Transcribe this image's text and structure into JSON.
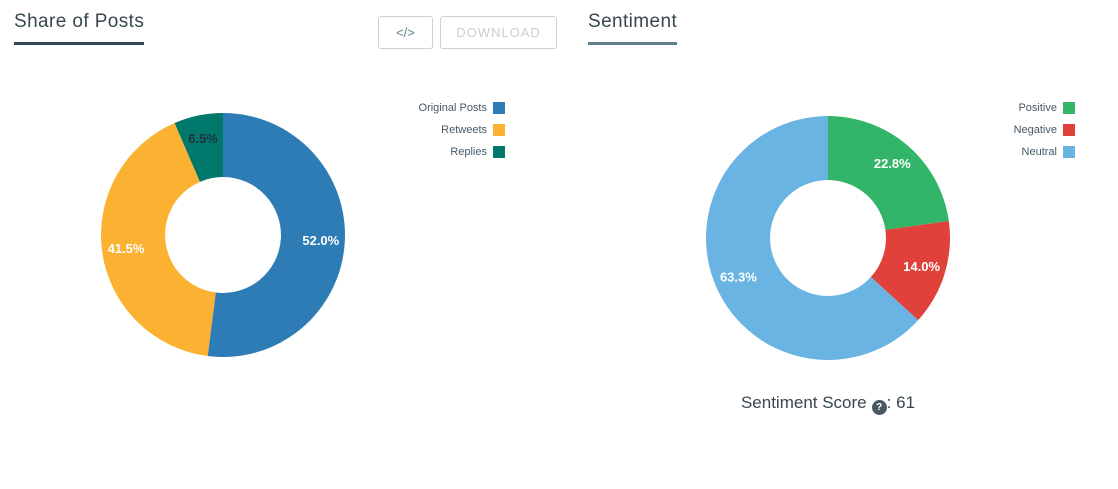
{
  "headers": {
    "share_of_posts": "Share of Posts",
    "sentiment": "Sentiment"
  },
  "toolbar": {
    "embed_label": "</>",
    "download_label": "DOWNLOAD"
  },
  "sentiment_score": {
    "label": "Sentiment Score",
    "help": "?",
    "separator": ":",
    "value": "61"
  },
  "colors": {
    "heading_text": "#37474f",
    "legend_text": "#455a64"
  },
  "chart_data": [
    {
      "type": "pie",
      "subtype": "donut",
      "title": "Share of Posts",
      "labels": [
        "Original Posts",
        "Retweets",
        "Replies"
      ],
      "values": [
        52.0,
        41.5,
        6.5
      ],
      "slice_labels": [
        "52.0%",
        "41.5%",
        "6.5%"
      ],
      "colors": [
        "#2e7cb5",
        "#fbb232",
        "#00786b"
      ],
      "label_colors": [
        "#ffffff",
        "#ffffff",
        "#20323c"
      ],
      "legend_position": "right",
      "start_angle_deg": 0,
      "direction": "clockwise"
    },
    {
      "type": "pie",
      "subtype": "donut",
      "title": "Sentiment",
      "labels": [
        "Positive",
        "Negative",
        "Neutral"
      ],
      "values": [
        22.8,
        14.0,
        63.3
      ],
      "slice_labels": [
        "22.8%",
        "14.0%",
        "63.3%"
      ],
      "colors": [
        "#33b569",
        "#e0423b",
        "#6ab4e4"
      ],
      "label_colors": [
        "#ffffff",
        "#ffffff",
        "#ffffff"
      ],
      "legend_position": "right",
      "start_angle_deg": 0,
      "direction": "clockwise"
    }
  ]
}
